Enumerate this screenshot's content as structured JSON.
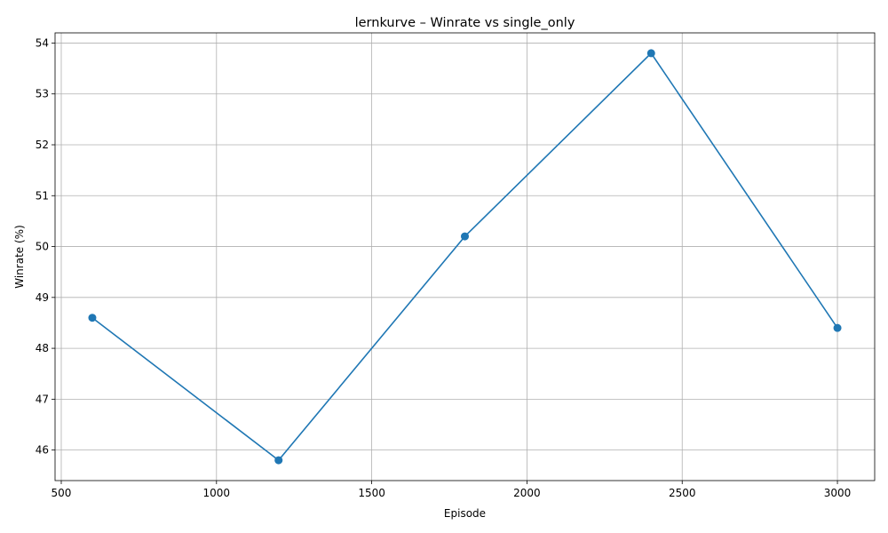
{
  "chart_data": {
    "type": "line",
    "title": "lernkurve – Winrate vs single_only",
    "xlabel": "Episode",
    "ylabel": "Winrate (%)",
    "x": [
      600,
      1200,
      1800,
      2400,
      3000
    ],
    "series": [
      {
        "values": [
          48.6,
          45.8,
          50.2,
          53.8,
          48.4
        ]
      }
    ],
    "xlim": [
      480,
      3120
    ],
    "ylim": [
      45.4,
      54.2
    ],
    "xticks": [
      500,
      1000,
      1500,
      2000,
      2500,
      3000
    ],
    "xtick_labels": [
      "500",
      "1000",
      "1500",
      "2000",
      "2500",
      "3000"
    ],
    "yticks": [
      46,
      47,
      48,
      49,
      50,
      51,
      52,
      53,
      54
    ],
    "ytick_labels": [
      "46",
      "47",
      "48",
      "49",
      "50",
      "51",
      "52",
      "53",
      "54"
    ],
    "grid": true,
    "markers": true,
    "line_color": "#1f77b4"
  }
}
